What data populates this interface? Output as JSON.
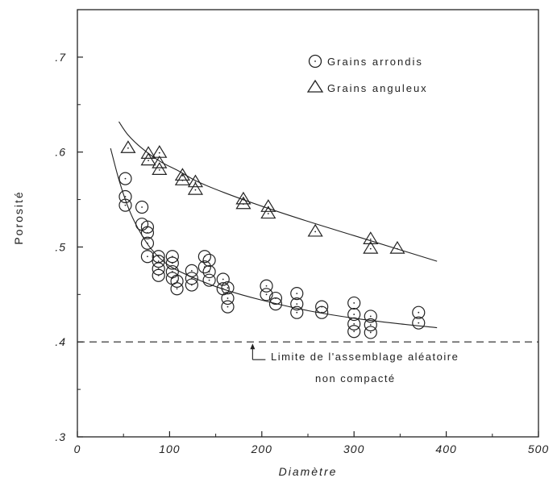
{
  "chart_data": {
    "type": "scatter",
    "xlabel": "Diamètre",
    "ylabel": "Porosité",
    "xlim": [
      0,
      500
    ],
    "ylim": [
      0.3,
      0.75
    ],
    "xticks": [
      0,
      100,
      200,
      300,
      400,
      500
    ],
    "xtick_labels": [
      "0",
      "100",
      "200",
      "300",
      "400",
      "500"
    ],
    "yticks": [
      0.3,
      0.4,
      0.5,
      0.6,
      0.7
    ],
    "ytick_labels": [
      ".3",
      ".4",
      ".5",
      ".6",
      ".7"
    ],
    "grid": false,
    "legend_position": "top-right",
    "series": [
      {
        "name": "Grains arrondis",
        "marker": "circle",
        "points": [
          [
            52,
            0.572
          ],
          [
            52,
            0.553
          ],
          [
            52,
            0.544
          ],
          [
            70,
            0.542
          ],
          [
            70,
            0.524
          ],
          [
            76,
            0.521
          ],
          [
            76,
            0.515
          ],
          [
            76,
            0.504
          ],
          [
            76,
            0.49
          ],
          [
            88,
            0.49
          ],
          [
            88,
            0.485
          ],
          [
            88,
            0.477
          ],
          [
            88,
            0.47
          ],
          [
            103,
            0.49
          ],
          [
            103,
            0.483
          ],
          [
            103,
            0.474
          ],
          [
            103,
            0.467
          ],
          [
            108,
            0.464
          ],
          [
            108,
            0.456
          ],
          [
            124,
            0.475
          ],
          [
            124,
            0.467
          ],
          [
            124,
            0.46
          ],
          [
            138,
            0.49
          ],
          [
            138,
            0.479
          ],
          [
            143,
            0.486
          ],
          [
            143,
            0.474
          ],
          [
            143,
            0.465
          ],
          [
            158,
            0.466
          ],
          [
            158,
            0.456
          ],
          [
            163,
            0.457
          ],
          [
            163,
            0.446
          ],
          [
            163,
            0.437
          ],
          [
            205,
            0.459
          ],
          [
            205,
            0.45
          ],
          [
            215,
            0.446
          ],
          [
            215,
            0.44
          ],
          [
            238,
            0.451
          ],
          [
            238,
            0.44
          ],
          [
            238,
            0.431
          ],
          [
            265,
            0.437
          ],
          [
            265,
            0.431
          ],
          [
            300,
            0.441
          ],
          [
            300,
            0.429
          ],
          [
            300,
            0.419
          ],
          [
            300,
            0.411
          ],
          [
            318,
            0.427
          ],
          [
            318,
            0.418
          ],
          [
            318,
            0.41
          ],
          [
            370,
            0.431
          ],
          [
            370,
            0.42
          ]
        ]
      },
      {
        "name": "Grains anguleux",
        "marker": "triangle",
        "points": [
          [
            55,
            0.605
          ],
          [
            77,
            0.599
          ],
          [
            77,
            0.592
          ],
          [
            89,
            0.6
          ],
          [
            89,
            0.589
          ],
          [
            89,
            0.582
          ],
          [
            114,
            0.576
          ],
          [
            114,
            0.571
          ],
          [
            128,
            0.569
          ],
          [
            128,
            0.561
          ],
          [
            180,
            0.551
          ],
          [
            180,
            0.546
          ],
          [
            207,
            0.543
          ],
          [
            207,
            0.536
          ],
          [
            258,
            0.517
          ],
          [
            318,
            0.509
          ],
          [
            318,
            0.499
          ],
          [
            347,
            0.499
          ]
        ]
      }
    ],
    "fit_curves": [
      {
        "for": "Grains arrondis",
        "points": [
          [
            36,
            0.604
          ],
          [
            45,
            0.571
          ],
          [
            55,
            0.542
          ],
          [
            65,
            0.521
          ],
          [
            80,
            0.498
          ],
          [
            100,
            0.48
          ],
          [
            130,
            0.466
          ],
          [
            160,
            0.455
          ],
          [
            200,
            0.444
          ],
          [
            250,
            0.433
          ],
          [
            300,
            0.425
          ],
          [
            350,
            0.419
          ],
          [
            390,
            0.415
          ]
        ]
      },
      {
        "for": "Grains anguleux",
        "points": [
          [
            45,
            0.632
          ],
          [
            55,
            0.618
          ],
          [
            70,
            0.604
          ],
          [
            90,
            0.59
          ],
          [
            110,
            0.58
          ],
          [
            130,
            0.569
          ],
          [
            160,
            0.557
          ],
          [
            200,
            0.543
          ],
          [
            250,
            0.527
          ],
          [
            300,
            0.512
          ],
          [
            350,
            0.497
          ],
          [
            390,
            0.485
          ]
        ]
      }
    ],
    "reference_line": {
      "y": 0.4,
      "style": "dashed",
      "label_line1": "Limite de l'assemblage aléatoire",
      "label_line2": "non compacté",
      "arrow_x": 190
    }
  }
}
